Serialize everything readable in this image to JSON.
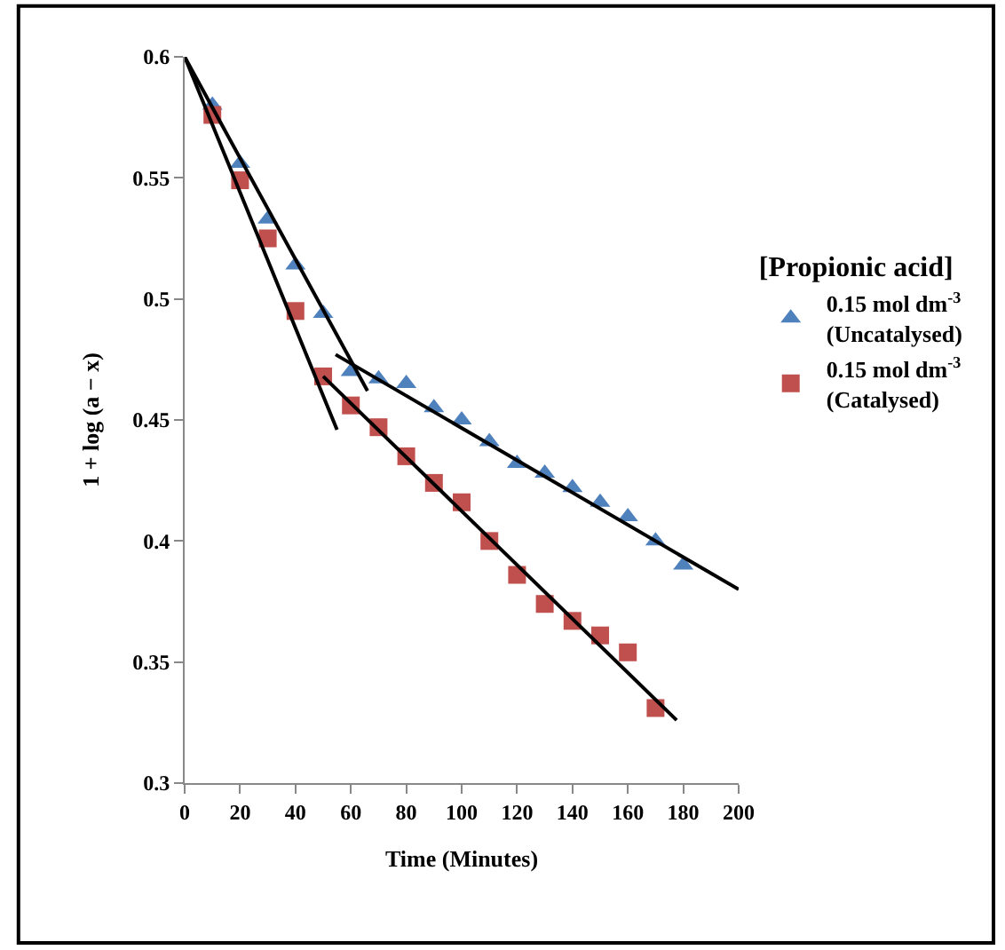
{
  "chart_data": {
    "type": "scatter",
    "xlabel": "Time (Minutes)",
    "ylabel": "1 + log (a − x)",
    "legend_title": "[Propionic acid]",
    "xlim": [
      0,
      200
    ],
    "xticks": [
      0,
      20,
      40,
      60,
      80,
      100,
      120,
      140,
      160,
      180,
      200
    ],
    "ylim": [
      0.3,
      0.6
    ],
    "yticks": [
      0.3,
      0.35,
      0.4,
      0.45,
      0.5,
      0.55,
      0.6
    ],
    "legend": "right",
    "series": [
      {
        "name": "0.15 mol dm$^{-3}$\n(Uncatalysed)",
        "color": "#4f81bd",
        "marker": "triangle",
        "x": [
          10,
          20,
          30,
          40,
          50,
          60,
          70,
          80,
          90,
          100,
          110,
          120,
          130,
          140,
          150,
          160,
          170,
          180
        ],
        "values": [
          0.58,
          0.556,
          0.533,
          0.514,
          0.494,
          0.47,
          0.467,
          0.465,
          0.455,
          0.45,
          0.441,
          0.432,
          0.428,
          0.422,
          0.416,
          0.41,
          0.4,
          0.39
        ]
      },
      {
        "name": "0.15 mol dm$^{-3}$\n(Catalysed)",
        "color": "#c0504d",
        "marker": "square",
        "x": [
          10,
          20,
          30,
          40,
          50,
          60,
          70,
          80,
          90,
          100,
          110,
          120,
          130,
          140,
          150,
          160,
          170
        ],
        "values": [
          0.576,
          0.549,
          0.525,
          0.495,
          0.468,
          0.456,
          0.447,
          0.435,
          0.424,
          0.416,
          0.4,
          0.386,
          0.374,
          0.367,
          0.361,
          0.354,
          0.331
        ]
      },
      {
        "type": "line",
        "color": "#000000",
        "x": [
          0,
          66
        ],
        "values": [
          0.6,
          0.462
        ]
      },
      {
        "type": "line",
        "color": "#000000",
        "x": [
          0,
          55
        ],
        "values": [
          0.6,
          0.446
        ]
      },
      {
        "type": "line",
        "color": "#000000",
        "x": [
          54.5,
          200
        ],
        "values": [
          0.477,
          0.38
        ]
      },
      {
        "type": "line",
        "color": "#000000",
        "x": [
          50,
          177.6
        ],
        "values": [
          0.468,
          0.326
        ]
      }
    ]
  }
}
